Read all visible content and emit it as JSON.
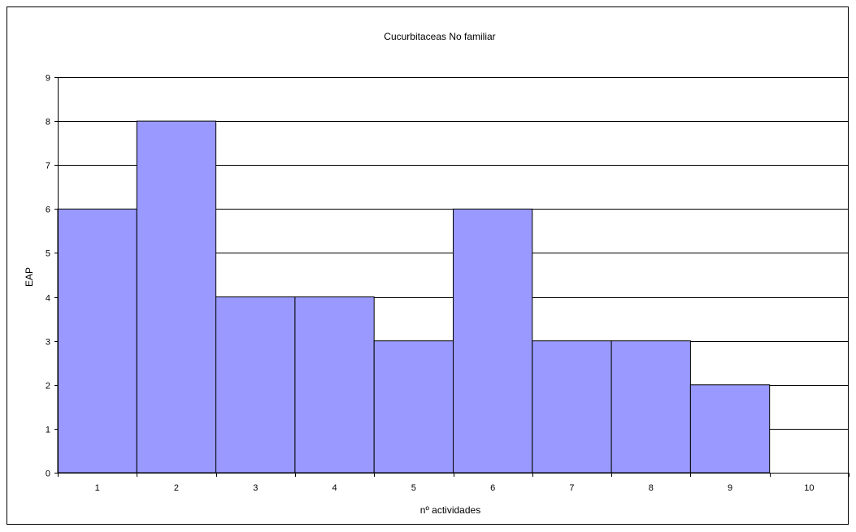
{
  "chart_data": {
    "type": "bar",
    "title": "Cucurbitaceas No familiar",
    "xlabel": "nº actividades",
    "ylabel": "EAP",
    "categories": [
      "1",
      "2",
      "3",
      "4",
      "5",
      "6",
      "7",
      "8",
      "9",
      "10"
    ],
    "values": [
      6,
      8,
      4,
      4,
      3,
      6,
      3,
      3,
      2,
      0
    ],
    "ylim": [
      0,
      9
    ],
    "yticks": [
      0,
      1,
      2,
      3,
      4,
      5,
      6,
      7,
      8,
      9
    ],
    "grid": true,
    "legend": "none",
    "colors": {
      "bar": "#9999ff",
      "bar_edge": "#000000",
      "grid": "#000000"
    }
  }
}
